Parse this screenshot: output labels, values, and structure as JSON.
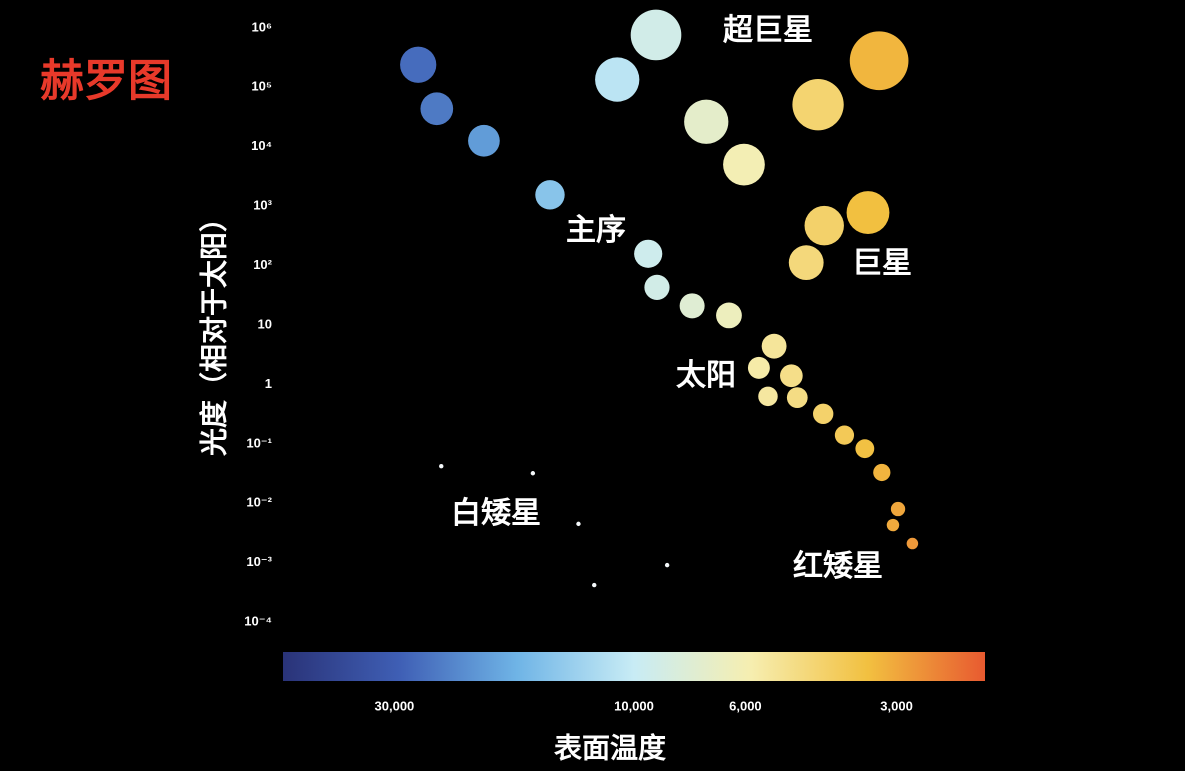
{
  "chart_data": {
    "type": "scatter",
    "title": "赫罗图",
    "x_label": "表面温度",
    "y_label": "光度（相对于太阳）",
    "xscale": "log",
    "yscale": "log",
    "x_reversed": true,
    "xlim": [
      50000,
      2000
    ],
    "ylim": [
      5e-05,
      2000000
    ],
    "xticks": [
      {
        "value": 30000,
        "label": "30,000"
      },
      {
        "value": 10000,
        "label": "10,000"
      },
      {
        "value": 6000,
        "label": "6,000"
      },
      {
        "value": 3000,
        "label": "3,000"
      }
    ],
    "yticks": [
      {
        "value": 1000000,
        "label": "10⁶"
      },
      {
        "value": 100000,
        "label": "10⁵"
      },
      {
        "value": 10000,
        "label": "10⁴"
      },
      {
        "value": 1000,
        "label": "10³"
      },
      {
        "value": 100,
        "label": "10²"
      },
      10,
      1,
      {
        "value": 0.1,
        "label": "10⁻¹"
      },
      {
        "value": 0.01,
        "label": "10⁻²"
      },
      {
        "value": 0.001,
        "label": "10⁻³"
      },
      {
        "value": 0.0001,
        "label": "10⁻⁴"
      }
    ],
    "colormap": [
      "#2a3378",
      "#3f5fb5",
      "#6fb4e6",
      "#c8ecf5",
      "#f6eeb0",
      "#f2c040",
      "#e85a30"
    ],
    "x": [
      26900,
      24700,
      19900,
      14700,
      9370,
      9000,
      7660,
      6470,
      5260,
      5640,
      4860,
      5410,
      4730,
      4200,
      3810,
      3470,
      3210,
      2980,
      3050,
      2790,
      9040,
      10800,
      7180,
      6040,
      4300,
      3250,
      3420,
      4180,
      4540,
      24200,
      15900,
      12900,
      8590,
      12000
    ],
    "values": [
      240000,
      43600,
      12600,
      1550,
      158,
      43,
      21,
      14.5,
      4.4,
      1.9,
      1.4,
      0.63,
      0.6,
      0.32,
      0.14,
      0.083,
      0.033,
      0.008,
      0.0043,
      0.0021,
      760000,
      135000,
      26300,
      5000,
      51000,
      280000,
      780,
      470,
      112,
      0.042,
      0.032,
      0.0045,
      0.00091,
      0.00042
    ],
    "annotations": [
      "超巨星",
      "主序",
      "巨星",
      "太阳",
      "白矮星",
      "红矮星"
    ]
  }
}
